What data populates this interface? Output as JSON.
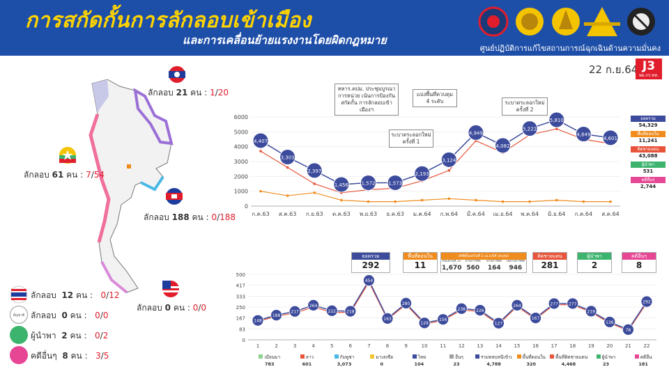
{
  "header": {
    "title": "การสกัดกั้นการลักลอบเข้าเมือง",
    "subtitle": "และการเคลื่อนย้ายแรงงานโดยผิดกฎหมาย",
    "org": "ศูนย์ปฏิบัติการแก้ไขสถานการณ์ฉุกเฉินด้านความมั่นคง",
    "date": "22 ก.ย.64",
    "badge": "J3",
    "badge_sub": "พอ.กร.ทท.",
    "colors": {
      "bar": "#1e4fa8",
      "title": "#ffd400",
      "badge": "#e11d2c"
    },
    "logos": [
      "navy-emblem",
      "army-emblem",
      "supreme-command-emblem",
      "air-force-emblem",
      "police-emblem"
    ]
  },
  "map_panel": {
    "laos": {
      "label": "ลักลอบ",
      "count": "21",
      "unit": "คน :",
      "ratio_a": "1",
      "ratio_b": "20"
    },
    "myanmar": {
      "label": "ลักลอบ",
      "count": "61",
      "unit": "คน :",
      "ratio_a": "7",
      "ratio_b": "54"
    },
    "cambodia": {
      "label": "ลักลอบ",
      "count": "188",
      "unit": "คน :",
      "ratio_a": "0",
      "ratio_b": "188"
    },
    "malaysia": {
      "label": "ลักลอบ",
      "count": "0",
      "unit": "คน :",
      "ratio_a": "0",
      "ratio_b": "0"
    },
    "rows": [
      {
        "icon": "thailand-flag-icon",
        "label": "ลักลอบ",
        "count": "12",
        "unit": "คน :",
        "ratio_a": "0",
        "ratio_b": "12"
      },
      {
        "icon": "other-nationality-icon",
        "icon_text": "สัญชาติอื่นๆ",
        "label": "ลักลอบ",
        "count": "0",
        "unit": "คน :",
        "ratio_a": "0",
        "ratio_b": "0"
      },
      {
        "icon": "green-dot-icon",
        "label": "ผู้นำพา",
        "count": "2",
        "unit": "คน :",
        "ratio_a": "0",
        "ratio_b": "2"
      },
      {
        "icon": "pink-dot-icon",
        "label": "คดีอื่นๆ",
        "count": "8",
        "unit": "คน :",
        "ratio_a": "3",
        "ratio_b": "5"
      }
    ]
  },
  "annotations": [
    "ทหาร.คปม. ประชุมบูรณาการหน่วย เน้นการป้องกันสกัดกั้น การลักลอบเข้าเมืองฯ",
    "แบ่งพื้นที่ควบคุม 4 ระดับ",
    "ระบาดระลอกใหม่ ครั้งที่ 1",
    "ระบาดระลอกใหม่ ครั้งที่ 2"
  ],
  "monthly_legend": [
    {
      "label": "ยอดรวม",
      "value": "54,329",
      "color": "#3c4b9c"
    },
    {
      "label": "พื้นที่ตอนใน",
      "value": "11,241",
      "color": "#f08c1e"
    },
    {
      "label": "ติดชายแดน",
      "value": "43,088",
      "color": "#e8543a"
    },
    {
      "label": "ผู้นำพา",
      "value": "531",
      "color": "#3cb46e"
    },
    {
      "label": "คดีอื่นๆ",
      "value": "2,744",
      "color": "#e64694"
    }
  ],
  "daily_stats": {
    "total": {
      "label": "ยอดรวม",
      "value": "292"
    },
    "inland": {
      "label": "พื้นที่ตอนใน",
      "value": "11"
    },
    "inland_detail": {
      "header": "สถิติตั้งแต่วันที่ 1 เม.ย.64 (สะสม)",
      "cols": [
        {
          "label": "ตั้งแต่วันที่ 25 พ.ค.64",
          "value": "1,670"
        },
        {
          "label": "ผ่านการคัดกรอง",
          "value": "560"
        },
        {
          "label": "ผ่านการคัดกรอง",
          "value": "164"
        },
        {
          "label": "ไม่ผ่านการคัดกรอง",
          "value": "946"
        }
      ]
    },
    "border": {
      "label": "ติดชายแดน",
      "value": "281"
    },
    "guides": {
      "label": "ผู้นำพา",
      "value": "2"
    },
    "others": {
      "label": "คดีอื่นๆ",
      "value": "8"
    }
  },
  "daily_legend": [
    {
      "label": "เมียนมา",
      "value": "783",
      "color": "#8fd18f"
    },
    {
      "label": "ลาว",
      "value": "601",
      "color": "#e8543a"
    },
    {
      "label": "กัมพูชา",
      "value": "3,073",
      "color": "#49b8e6"
    },
    {
      "label": "มาเลเซีย",
      "value": "0",
      "color": "#f2c531"
    },
    {
      "label": "ไทย",
      "value": "104",
      "color": "#3c4b9c"
    },
    {
      "label": "อื่นๆ",
      "value": "23",
      "color": "#a0a0a0"
    },
    {
      "label": "รวมหลบหนีเข้าเมือง",
      "value": "4,788",
      "color": "#3c4b9c"
    },
    {
      "label": "พื้นที่ตอนใน",
      "value": "320",
      "color": "#f08c1e"
    },
    {
      "label": "พื้นที่ติดชายแดน",
      "value": "4,468",
      "color": "#e8543a"
    },
    {
      "label": "ผู้นำพา",
      "value": "23",
      "color": "#3cb46e"
    },
    {
      "label": "คดีอื่น",
      "value": "181",
      "color": "#e64694"
    }
  ],
  "chart_data": [
    {
      "type": "line",
      "categories": [
        "ก.ค.63",
        "ส.ค.63",
        "ก.ย.63",
        "ต.ค.63",
        "พ.ย.63",
        "ธ.ค.63",
        "ม.ค.64",
        "ก.พ.64",
        "มี.ค.64",
        "เม.ย.64",
        "พ.ค.64",
        "มิ.ย.64",
        "ก.ค.64",
        "ส.ค.64"
      ],
      "ylim": [
        0,
        6000
      ],
      "yticks": [
        0,
        1000,
        2000,
        3000,
        4000,
        5000,
        6000
      ],
      "series": [
        {
          "name": "ยอดรวม",
          "values": [
            4407,
            3303,
            2397,
            1456,
            1572,
            1573,
            2193,
            3124,
            4949,
            4082,
            5222,
            5810,
            4849,
            4601
          ],
          "labels": [
            "4,407",
            "3,303",
            "2,397",
            "1,456",
            "1,572",
            "1,573",
            "2,193",
            "3,124",
            "4,949",
            "4,082",
            "5,222",
            "5,810",
            "4,849",
            "4,601"
          ]
        },
        {
          "name": "ติดชายแดน",
          "values": [
            3700,
            2600,
            1500,
            900,
            1100,
            1200,
            1700,
            2400,
            4400,
            3600,
            4800,
            5200,
            4500,
            4200
          ]
        },
        {
          "name": "พื้นที่ตอนใน",
          "values": [
            1000,
            700,
            900,
            400,
            300,
            300,
            400,
            500,
            400,
            300,
            300,
            400,
            300,
            300
          ]
        }
      ]
    },
    {
      "type": "line",
      "categories": [
        "1",
        "2",
        "3",
        "4",
        "5",
        "6",
        "7",
        "8",
        "9",
        "10",
        "11",
        "12",
        "13",
        "14",
        "15",
        "16",
        "17",
        "18",
        "19",
        "20",
        "21",
        "22"
      ],
      "ylim": [
        0,
        500
      ],
      "yticks": [
        0,
        83,
        167,
        250,
        333,
        417,
        500
      ],
      "series": [
        {
          "name": "รวมหลบหนีเข้าเมือง",
          "values": [
            148,
            188,
            217,
            264,
            222,
            218,
            454,
            163,
            280,
            129,
            156,
            238,
            226,
            127,
            264,
            167,
            277,
            277,
            219,
            136,
            78,
            292
          ]
        },
        {
          "name": "พื้นที่ติดชายแดน",
          "values": [
            140,
            180,
            205,
            250,
            210,
            208,
            440,
            155,
            270,
            120,
            148,
            228,
            216,
            118,
            254,
            158,
            268,
            268,
            210,
            128,
            70,
            281
          ]
        }
      ]
    }
  ]
}
